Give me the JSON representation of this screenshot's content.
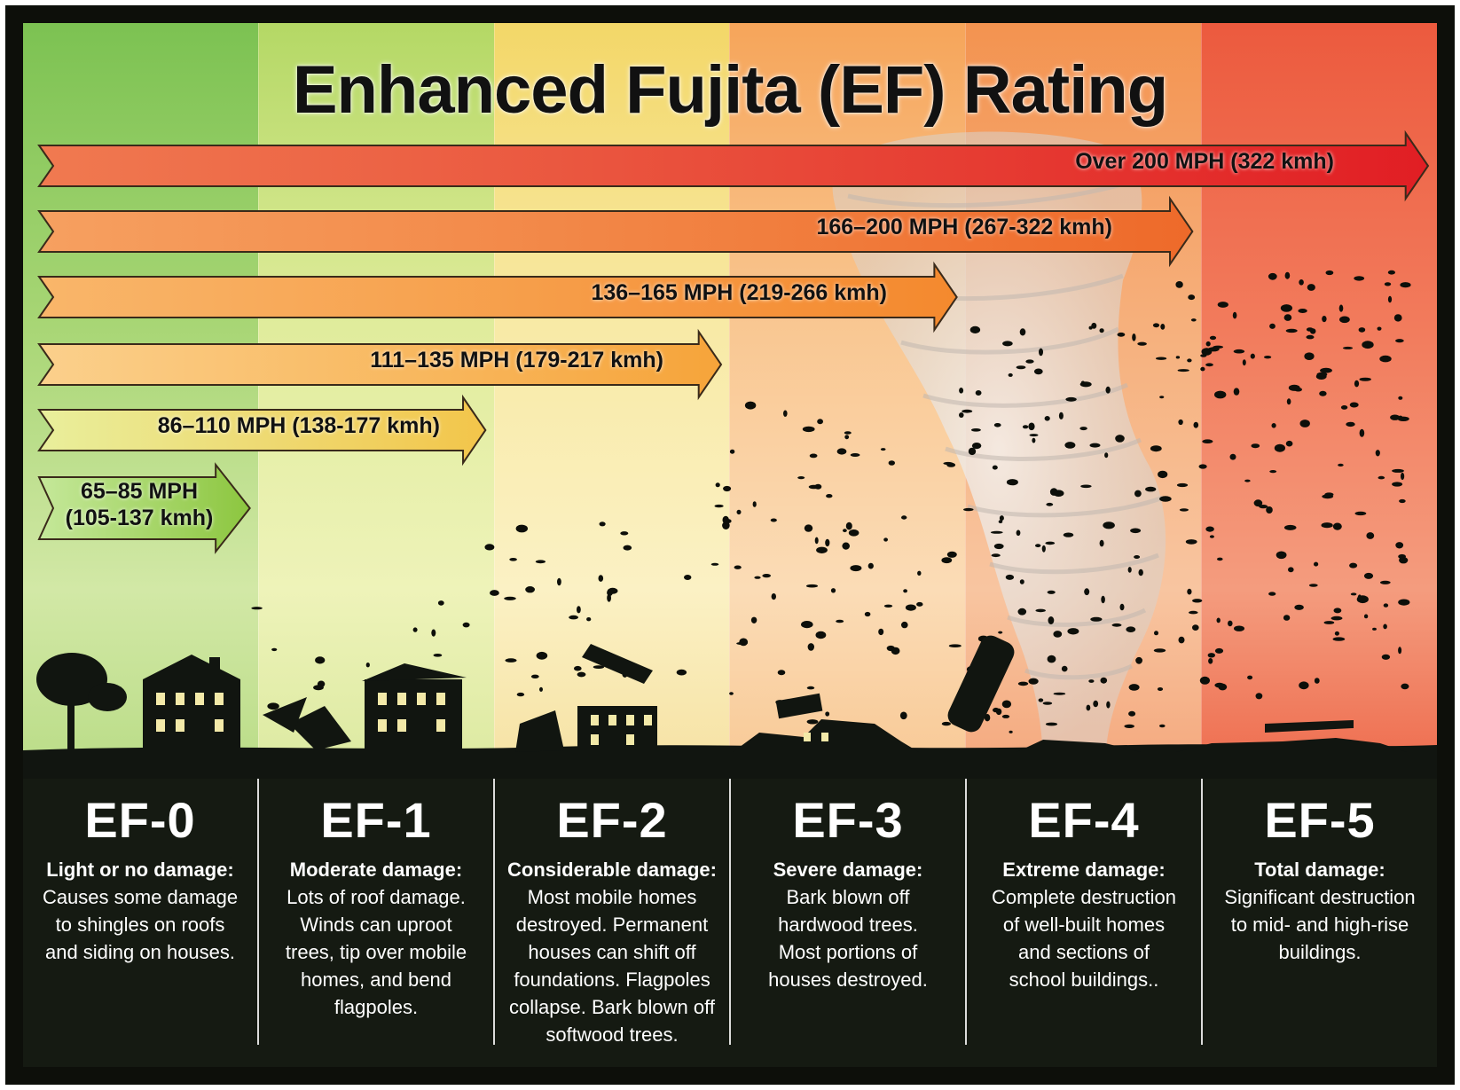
{
  "title": "Enhanced Fujita (EF) Rating",
  "colors": {
    "band_greens": "#8fc85a",
    "band_yellow": "#f2e27a",
    "band_orange": "#f6a25a",
    "band_red": "#ee5a44",
    "footer": "#151a12"
  },
  "arrows": [
    {
      "label": "Over 200 MPH (322 kmh)",
      "fill_start": "#f07a50",
      "fill_end": "#e11e24"
    },
    {
      "label": "166–200 MPH (267-322 kmh)",
      "fill_start": "#f6a060",
      "fill_end": "#ee6a2a"
    },
    {
      "label": "136–165 MPH (219-266 kmh)",
      "fill_start": "#f9b66a",
      "fill_end": "#f4892e"
    },
    {
      "label": "111–135 MPH (179-217 kmh)",
      "fill_start": "#fbd08c",
      "fill_end": "#f6a43a"
    },
    {
      "label": "86–110 MPH (138-177 kmh)",
      "fill_start": "#e9ef9c",
      "fill_end": "#f3c54a"
    },
    {
      "label_line1": "65–85 MPH",
      "label_line2": "(105-137 kmh)",
      "fill_start": "#c5e89a",
      "fill_end": "#8cc63f"
    }
  ],
  "ratings": [
    {
      "name": "EF-0",
      "heading": "Light or no damage:",
      "lines": [
        "Causes some damage",
        "to shingles on roofs",
        "and siding on houses."
      ]
    },
    {
      "name": "EF-1",
      "heading": "Moderate damage:",
      "lines": [
        "Lots of roof damage.",
        "Winds can uproot",
        "trees, tip over mobile",
        "homes, and bend",
        "flagpoles."
      ]
    },
    {
      "name": "EF-2",
      "heading": "Considerable damage:",
      "lines": [
        "Most mobile homes",
        "destroyed. Permanent",
        "houses can shift off",
        "foundations. Flagpoles",
        "collapse. Bark blown off",
        "softwood trees."
      ]
    },
    {
      "name": "EF-3",
      "heading": "Severe damage:",
      "lines": [
        "Bark blown off",
        "hardwood trees.",
        "Most portions of",
        "houses destroyed."
      ]
    },
    {
      "name": "EF-4",
      "heading": "Extreme damage:",
      "lines": [
        "Complete destruction",
        "of well-built homes",
        "and sections of",
        "school buildings.."
      ]
    },
    {
      "name": "EF-5",
      "heading": "Total damage:",
      "lines": [
        "Significant destruction",
        "to mid- and high-rise",
        "buildings."
      ]
    }
  ]
}
